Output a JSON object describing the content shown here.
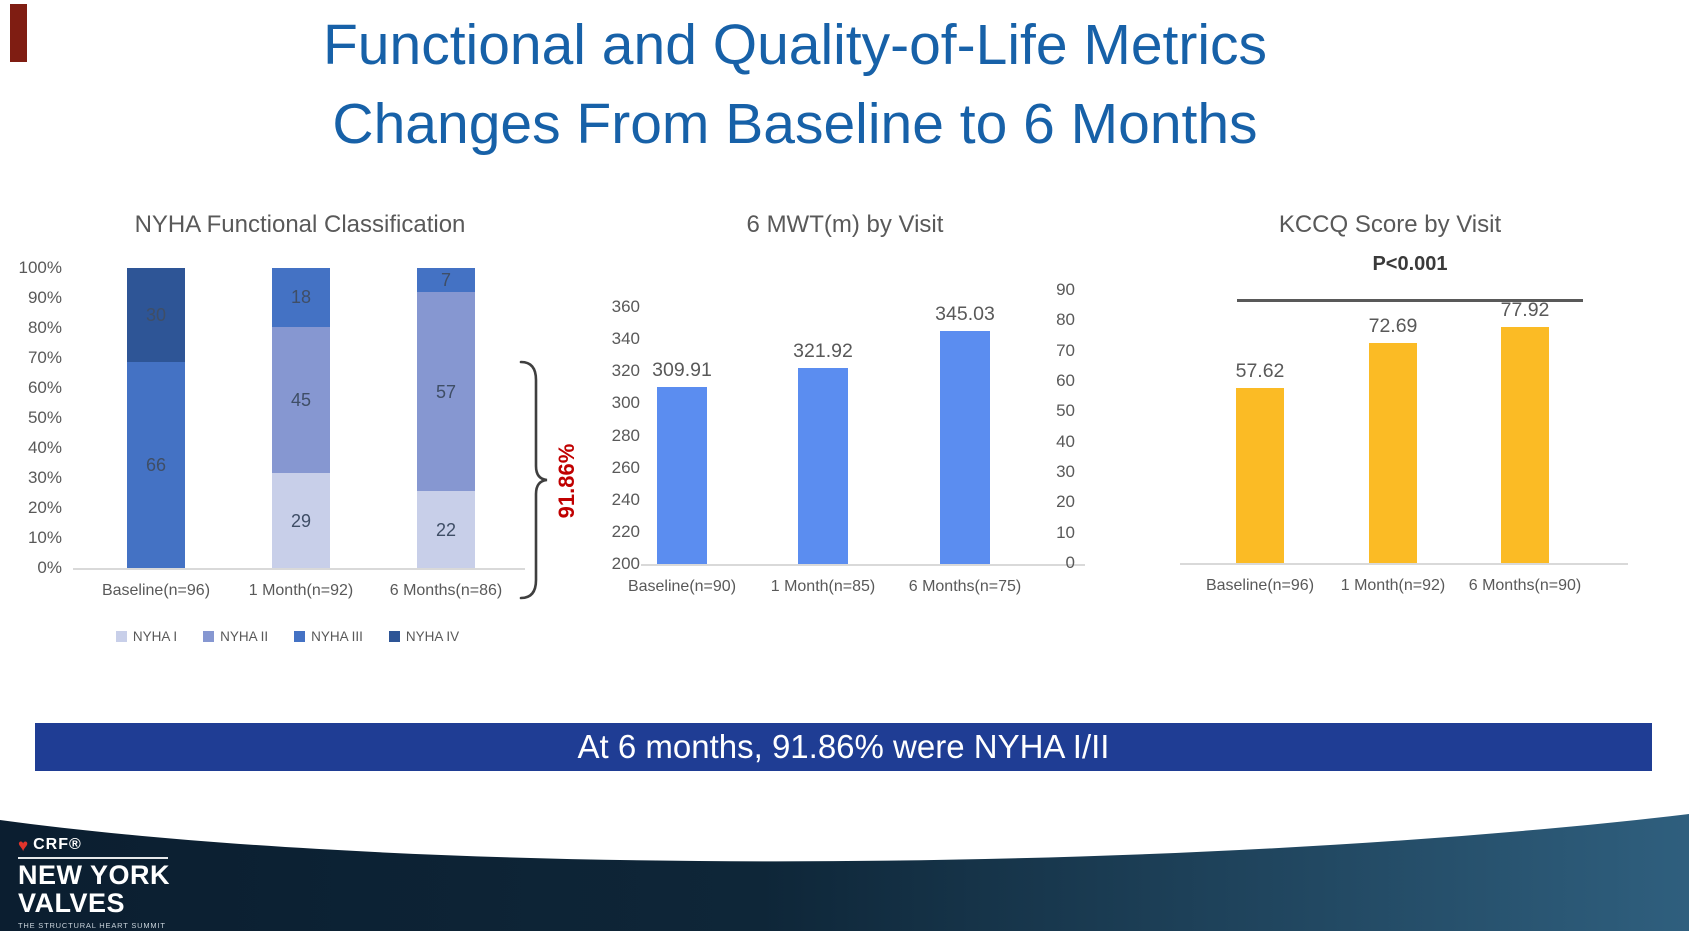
{
  "slide": {
    "title_line1": "Functional and Quality-of-Life Metrics",
    "title_line2": "Changes From Baseline to 6 Months",
    "banner_text": "At 6 months, 91.86% were NYHA I/II",
    "footer_logo": {
      "org": "CRF®",
      "line1": "NEW YORK",
      "line2": "VALVES",
      "tagline": "THE STRUCTURAL HEART SUMMIT"
    },
    "colors": {
      "title_blue": "#1761A8",
      "banner_bg": "#1F3D94",
      "annotation_red": "#C00000",
      "accent_mark_red": "#7F1D12",
      "footer_navy": "#0B1E30"
    }
  },
  "chart_data": [
    {
      "type": "bar",
      "variant": "stacked-percent",
      "title": "NYHA Functional Classification",
      "categories": [
        "Baseline(n=96)",
        "1 Month(n=92)",
        "6 Months(n=86)"
      ],
      "series": [
        {
          "name": "NYHA I",
          "color": "#C8CFE9",
          "values": [
            0,
            29,
            22
          ]
        },
        {
          "name": "NYHA II",
          "color": "#8697D1",
          "values": [
            0,
            45,
            57
          ]
        },
        {
          "name": "NYHA III",
          "color": "#4472C4",
          "values": [
            66,
            18,
            7
          ]
        },
        {
          "name": "NYHA IV",
          "color": "#2E5596",
          "values": [
            30,
            0,
            0
          ]
        }
      ],
      "y_ticks": [
        "100%",
        "90%",
        "80%",
        "70%",
        "60%",
        "50%",
        "40%",
        "30%",
        "20%",
        "10%",
        "0%"
      ],
      "ylim_percent": [
        0,
        100
      ],
      "legend_position": "bottom",
      "annotation": {
        "text": "91.86%",
        "color": "#C00000"
      }
    },
    {
      "type": "bar",
      "title": "6 MWT(m) by Visit",
      "categories": [
        "Baseline(n=90)",
        "1 Month(n=85)",
        "6 Months(n=75)"
      ],
      "values": [
        309.91,
        321.92,
        345.03
      ],
      "bar_color": "#5B8DF0",
      "ylim": [
        200,
        360
      ],
      "y_ticks": [
        "360",
        "340",
        "320",
        "300",
        "280",
        "260",
        "240",
        "220",
        "200"
      ]
    },
    {
      "type": "bar",
      "title": "KCCQ Score by Visit",
      "categories": [
        "Baseline(n=96)",
        "1 Month(n=92)",
        "6 Months(n=90)"
      ],
      "values": [
        57.62,
        72.69,
        77.92
      ],
      "bar_color": "#FBBB25",
      "ylim": [
        0,
        90
      ],
      "y_ticks": [
        "90",
        "80",
        "70",
        "60",
        "50",
        "40",
        "30",
        "20",
        "10",
        "0"
      ],
      "annotation": {
        "text": "P<0.001"
      }
    }
  ]
}
